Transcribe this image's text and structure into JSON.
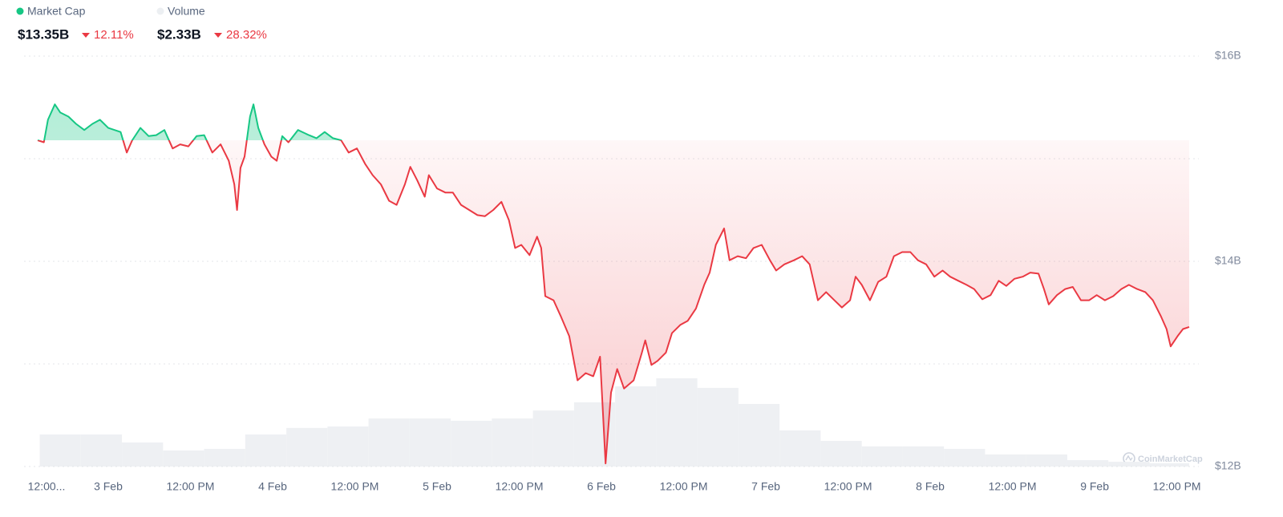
{
  "chart_data": {
    "type": "line",
    "summary": [
      {
        "value": "$13.35B",
        "change": "12.11%"
      },
      {
        "value": "$2.33B",
        "change": "28.32%"
      }
    ],
    "watermark": "CoinMarketCap",
    "xlim": [
      13.7,
      181.8
    ],
    "xticks": [
      {
        "value": 12,
        "label": "12:00..."
      },
      {
        "value": 24,
        "label": "3 Feb"
      },
      {
        "value": 36,
        "label": "12:00 PM"
      },
      {
        "value": 48,
        "label": "4 Feb"
      },
      {
        "value": 60,
        "label": "12:00 PM"
      },
      {
        "value": 72,
        "label": "5 Feb"
      },
      {
        "value": 84,
        "label": "12:00 PM"
      },
      {
        "value": 96,
        "label": "6 Feb"
      },
      {
        "value": 108,
        "label": "12:00 PM"
      },
      {
        "value": 120,
        "label": "7 Feb"
      },
      {
        "value": 132,
        "label": "12:00 PM"
      },
      {
        "value": 144,
        "label": "8 Feb"
      },
      {
        "value": 156,
        "label": "12:00 PM"
      },
      {
        "value": 168,
        "label": "9 Feb"
      },
      {
        "value": 180,
        "label": "12:00 PM"
      }
    ],
    "ylim": [
      12,
      16
    ],
    "yticks": [
      {
        "value": 16,
        "label": "$16B"
      },
      {
        "value": 14,
        "label": "$14B"
      },
      {
        "value": 12,
        "label": "$12B"
      }
    ],
    "minor_yticks": [
      13,
      15
    ],
    "y2lim": [
      0,
      20
    ],
    "grid": true,
    "up_color": "#16c784",
    "series": [
      {
        "name": "Market Cap",
        "color": "#ea3943",
        "x": [
          13.7,
          14.6,
          15.2,
          16.2,
          17.0,
          18.2,
          19.3,
          20.5,
          21.7,
          22.8,
          24.0,
          25.8,
          26.7,
          27.5,
          28.7,
          29.9,
          31.0,
          32.2,
          33.4,
          34.5,
          35.7,
          36.9,
          38.0,
          39.2,
          40.4,
          41.6,
          42.4,
          42.8,
          43.3,
          43.9,
          44.7,
          45.2,
          45.9,
          46.8,
          47.8,
          48.6,
          49.4,
          50.3,
          51.7,
          53.3,
          54.4,
          55.6,
          56.8,
          58.0,
          59.1,
          60.3,
          61.5,
          62.6,
          63.8,
          65.0,
          66.1,
          67.3,
          68.1,
          69.1,
          70.2,
          70.8,
          72.0,
          73.2,
          74.3,
          75.5,
          76.7,
          77.9,
          79.0,
          80.2,
          81.4,
          82.5,
          83.4,
          84.3,
          85.5,
          86.6,
          87.2,
          87.8,
          89.0,
          90.1,
          91.3,
          92.5,
          93.7,
          94.8,
          95.8,
          96.6,
          97.4,
          98.3,
          99.3,
          100.7,
          101.9,
          102.4,
          103.3,
          104.2,
          105.4,
          106.3,
          107.5,
          108.6,
          109.8,
          111.0,
          111.8,
          112.7,
          113.9,
          114.7,
          115.9,
          117.1,
          118.2,
          119.4,
          120.6,
          121.5,
          122.7,
          124.1,
          125.3,
          126.4,
          127.6,
          128.8,
          130.0,
          131.1,
          132.3,
          133.1,
          134.0,
          135.2,
          136.4,
          137.6,
          138.7,
          139.9,
          141.1,
          142.2,
          143.4,
          144.6,
          145.8,
          146.9,
          148.1,
          149.3,
          150.4,
          151.6,
          152.8,
          154.0,
          155.1,
          156.3,
          157.5,
          158.6,
          159.8,
          160.6,
          161.3,
          162.5,
          163.7,
          164.8,
          166.0,
          167.2,
          168.3,
          169.5,
          170.7,
          171.9,
          173.0,
          174.2,
          175.4,
          176.5,
          177.7,
          178.5,
          179.1,
          180.1,
          180.9,
          181.8
        ],
        "values": [
          15.18,
          15.16,
          15.38,
          15.53,
          15.45,
          15.41,
          15.34,
          15.28,
          15.34,
          15.38,
          15.3,
          15.26,
          15.06,
          15.18,
          15.3,
          15.22,
          15.23,
          15.28,
          15.1,
          15.14,
          15.12,
          15.22,
          15.23,
          15.06,
          15.14,
          14.98,
          14.75,
          14.5,
          14.91,
          15.02,
          15.41,
          15.53,
          15.3,
          15.14,
          15.02,
          14.98,
          15.22,
          15.16,
          15.28,
          15.23,
          15.2,
          15.26,
          15.2,
          15.18,
          15.06,
          15.1,
          14.95,
          14.84,
          14.75,
          14.59,
          14.55,
          14.75,
          14.92,
          14.79,
          14.63,
          14.84,
          14.71,
          14.67,
          14.67,
          14.55,
          14.5,
          14.45,
          14.44,
          14.5,
          14.58,
          14.4,
          14.13,
          14.16,
          14.06,
          14.24,
          14.13,
          13.66,
          13.62,
          13.46,
          13.27,
          12.84,
          12.91,
          12.88,
          13.07,
          12.03,
          12.72,
          12.95,
          12.76,
          12.84,
          13.11,
          13.23,
          12.99,
          13.03,
          13.11,
          13.3,
          13.38,
          13.42,
          13.54,
          13.77,
          13.89,
          14.16,
          14.32,
          14.01,
          14.05,
          14.03,
          14.13,
          14.16,
          14.01,
          13.91,
          13.97,
          14.01,
          14.05,
          13.97,
          13.62,
          13.7,
          13.62,
          13.55,
          13.62,
          13.85,
          13.77,
          13.62,
          13.8,
          13.85,
          14.05,
          14.09,
          14.09,
          14.01,
          13.97,
          13.85,
          13.91,
          13.85,
          13.81,
          13.77,
          13.73,
          13.63,
          13.67,
          13.81,
          13.76,
          13.83,
          13.85,
          13.89,
          13.88,
          13.73,
          13.58,
          13.67,
          13.73,
          13.75,
          13.62,
          13.62,
          13.67,
          13.62,
          13.66,
          13.73,
          13.77,
          13.73,
          13.7,
          13.62,
          13.46,
          13.34,
          13.17,
          13.27,
          13.34,
          13.36
        ]
      },
      {
        "name": "Volume",
        "color": "#eef0f3",
        "axis": "y2",
        "x": [
          14,
          20,
          26,
          32,
          38,
          44,
          50,
          56,
          62,
          68,
          74,
          80,
          86,
          92,
          98,
          104,
          110,
          116,
          122,
          128,
          134,
          140,
          146,
          152,
          158,
          164,
          170,
          176
        ],
        "values": [
          1.56,
          1.56,
          1.17,
          0.78,
          0.86,
          1.56,
          1.88,
          1.95,
          2.34,
          2.34,
          2.23,
          2.34,
          2.73,
          3.13,
          3.91,
          4.3,
          3.83,
          3.05,
          1.76,
          1.25,
          0.98,
          0.98,
          0.86,
          0.59,
          0.59,
          0.31,
          0.23,
          0.16
        ]
      }
    ]
  }
}
